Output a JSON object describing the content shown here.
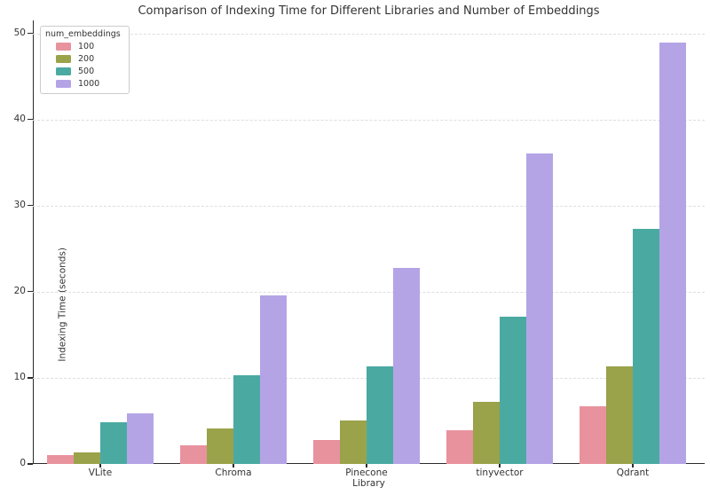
{
  "chart_data": {
    "type": "bar",
    "title": "Comparison of Indexing Time for Different Libraries and Number of Embeddings",
    "xlabel": "Library",
    "ylabel": "Indexing Time (seconds)",
    "legend_title": "num_embeddings",
    "legend_position": "upper-left",
    "grid": true,
    "categories": [
      "VLite",
      "Chroma",
      "Pinecone",
      "tinyvector",
      "Qdrant"
    ],
    "series": [
      {
        "name": "100",
        "color": "#e8929e",
        "values": [
          1.0,
          2.2,
          2.8,
          3.9,
          6.7
        ]
      },
      {
        "name": "200",
        "color": "#9aa24a",
        "values": [
          1.3,
          4.1,
          5.0,
          7.2,
          11.3
        ]
      },
      {
        "name": "500",
        "color": "#4aaaa2",
        "values": [
          4.8,
          10.3,
          11.3,
          17.1,
          27.3
        ]
      },
      {
        "name": "1000",
        "color": "#b4a4e6",
        "values": [
          5.9,
          19.6,
          22.8,
          36.0,
          48.9
        ]
      }
    ],
    "yticks": [
      0,
      10,
      20,
      30,
      40,
      50
    ],
    "ylim": [
      0,
      51.5
    ]
  }
}
